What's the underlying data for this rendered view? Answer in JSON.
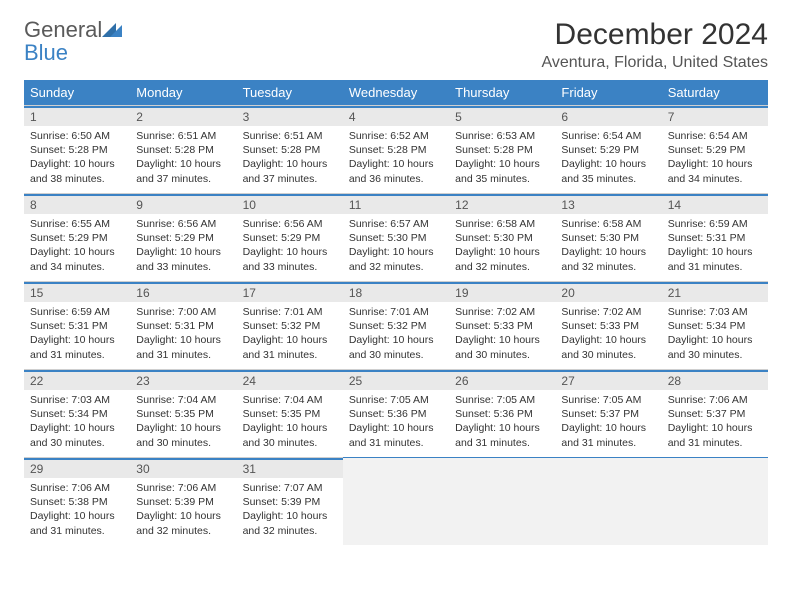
{
  "logo": {
    "line1": "General",
    "line2": "Blue"
  },
  "title": "December 2024",
  "subtitle": "Aventura, Florida, United States",
  "dow_header_bg": "#3b82c4",
  "dow": [
    "Sunday",
    "Monday",
    "Tuesday",
    "Wednesday",
    "Thursday",
    "Friday",
    "Saturday"
  ],
  "days": [
    {
      "n": 1,
      "sunrise": "6:50 AM",
      "sunset": "5:28 PM",
      "daylight": "10 hours and 38 minutes."
    },
    {
      "n": 2,
      "sunrise": "6:51 AM",
      "sunset": "5:28 PM",
      "daylight": "10 hours and 37 minutes."
    },
    {
      "n": 3,
      "sunrise": "6:51 AM",
      "sunset": "5:28 PM",
      "daylight": "10 hours and 37 minutes."
    },
    {
      "n": 4,
      "sunrise": "6:52 AM",
      "sunset": "5:28 PM",
      "daylight": "10 hours and 36 minutes."
    },
    {
      "n": 5,
      "sunrise": "6:53 AM",
      "sunset": "5:28 PM",
      "daylight": "10 hours and 35 minutes."
    },
    {
      "n": 6,
      "sunrise": "6:54 AM",
      "sunset": "5:29 PM",
      "daylight": "10 hours and 35 minutes."
    },
    {
      "n": 7,
      "sunrise": "6:54 AM",
      "sunset": "5:29 PM",
      "daylight": "10 hours and 34 minutes."
    },
    {
      "n": 8,
      "sunrise": "6:55 AM",
      "sunset": "5:29 PM",
      "daylight": "10 hours and 34 minutes."
    },
    {
      "n": 9,
      "sunrise": "6:56 AM",
      "sunset": "5:29 PM",
      "daylight": "10 hours and 33 minutes."
    },
    {
      "n": 10,
      "sunrise": "6:56 AM",
      "sunset": "5:29 PM",
      "daylight": "10 hours and 33 minutes."
    },
    {
      "n": 11,
      "sunrise": "6:57 AM",
      "sunset": "5:30 PM",
      "daylight": "10 hours and 32 minutes."
    },
    {
      "n": 12,
      "sunrise": "6:58 AM",
      "sunset": "5:30 PM",
      "daylight": "10 hours and 32 minutes."
    },
    {
      "n": 13,
      "sunrise": "6:58 AM",
      "sunset": "5:30 PM",
      "daylight": "10 hours and 32 minutes."
    },
    {
      "n": 14,
      "sunrise": "6:59 AM",
      "sunset": "5:31 PM",
      "daylight": "10 hours and 31 minutes."
    },
    {
      "n": 15,
      "sunrise": "6:59 AM",
      "sunset": "5:31 PM",
      "daylight": "10 hours and 31 minutes."
    },
    {
      "n": 16,
      "sunrise": "7:00 AM",
      "sunset": "5:31 PM",
      "daylight": "10 hours and 31 minutes."
    },
    {
      "n": 17,
      "sunrise": "7:01 AM",
      "sunset": "5:32 PM",
      "daylight": "10 hours and 31 minutes."
    },
    {
      "n": 18,
      "sunrise": "7:01 AM",
      "sunset": "5:32 PM",
      "daylight": "10 hours and 30 minutes."
    },
    {
      "n": 19,
      "sunrise": "7:02 AM",
      "sunset": "5:33 PM",
      "daylight": "10 hours and 30 minutes."
    },
    {
      "n": 20,
      "sunrise": "7:02 AM",
      "sunset": "5:33 PM",
      "daylight": "10 hours and 30 minutes."
    },
    {
      "n": 21,
      "sunrise": "7:03 AM",
      "sunset": "5:34 PM",
      "daylight": "10 hours and 30 minutes."
    },
    {
      "n": 22,
      "sunrise": "7:03 AM",
      "sunset": "5:34 PM",
      "daylight": "10 hours and 30 minutes."
    },
    {
      "n": 23,
      "sunrise": "7:04 AM",
      "sunset": "5:35 PM",
      "daylight": "10 hours and 30 minutes."
    },
    {
      "n": 24,
      "sunrise": "7:04 AM",
      "sunset": "5:35 PM",
      "daylight": "10 hours and 30 minutes."
    },
    {
      "n": 25,
      "sunrise": "7:05 AM",
      "sunset": "5:36 PM",
      "daylight": "10 hours and 31 minutes."
    },
    {
      "n": 26,
      "sunrise": "7:05 AM",
      "sunset": "5:36 PM",
      "daylight": "10 hours and 31 minutes."
    },
    {
      "n": 27,
      "sunrise": "7:05 AM",
      "sunset": "5:37 PM",
      "daylight": "10 hours and 31 minutes."
    },
    {
      "n": 28,
      "sunrise": "7:06 AM",
      "sunset": "5:37 PM",
      "daylight": "10 hours and 31 minutes."
    },
    {
      "n": 29,
      "sunrise": "7:06 AM",
      "sunset": "5:38 PM",
      "daylight": "10 hours and 31 minutes."
    },
    {
      "n": 30,
      "sunrise": "7:06 AM",
      "sunset": "5:39 PM",
      "daylight": "10 hours and 32 minutes."
    },
    {
      "n": 31,
      "sunrise": "7:07 AM",
      "sunset": "5:39 PM",
      "daylight": "10 hours and 32 minutes."
    }
  ],
  "labels": {
    "sunrise": "Sunrise:",
    "sunset": "Sunset:",
    "daylight": "Daylight:"
  },
  "start_dow": 0,
  "trailing_empty": 4
}
